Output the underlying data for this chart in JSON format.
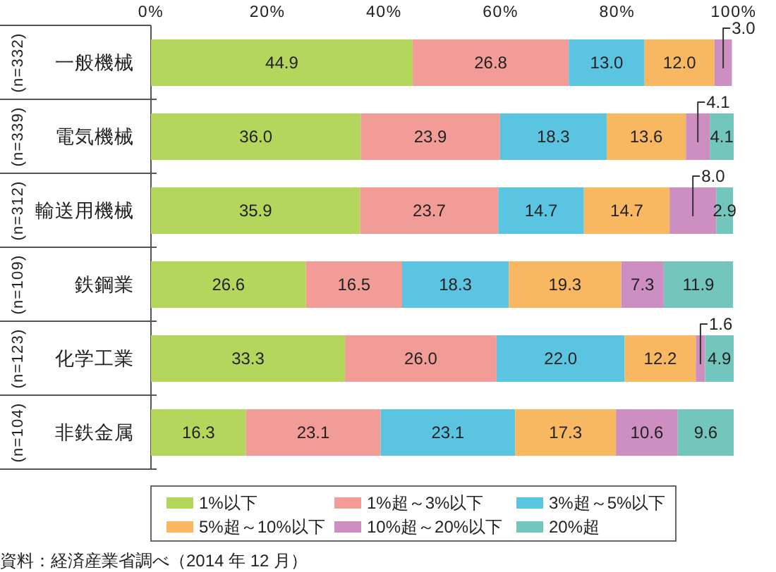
{
  "chart_data": {
    "type": "bar",
    "orientation": "horizontal",
    "stacked": true,
    "categories": [
      "一般機械",
      "電気機械",
      "輸送用機械",
      "鉄鋼業",
      "化学工業",
      "非鉄金属"
    ],
    "y2_categories": [
      "(n=332)",
      "(n=339)",
      "(n=312)",
      "(n=109)",
      "(n=123)",
      "(n=104)"
    ],
    "xlim": [
      0,
      100
    ],
    "xticks": [
      {
        "value": 0,
        "label": "0%"
      },
      {
        "value": 20,
        "label": "20%"
      },
      {
        "value": 40,
        "label": "40%"
      },
      {
        "value": 60,
        "label": "60%"
      },
      {
        "value": 80,
        "label": "80%"
      },
      {
        "value": 100,
        "label": "100%"
      }
    ],
    "series": [
      {
        "name": "1%以下",
        "color": "#b5d65d",
        "values": [
          44.9,
          36.0,
          35.9,
          26.6,
          33.3,
          16.3
        ],
        "value_labels": [
          "44.9",
          "36.0",
          "35.9",
          "26.6",
          "33.3",
          "16.3"
        ]
      },
      {
        "name": "1%超～3%以下",
        "color": "#f29c97",
        "values": [
          26.8,
          23.9,
          23.7,
          16.5,
          26.0,
          23.1
        ],
        "value_labels": [
          "26.8",
          "23.9",
          "23.7",
          "16.5",
          "26.0",
          "23.1"
        ]
      },
      {
        "name": "3%超～5%以下",
        "color": "#5bc4e1",
        "values": [
          13.0,
          18.3,
          14.7,
          18.3,
          22.0,
          23.1
        ],
        "value_labels": [
          "13.0",
          "18.3",
          "14.7",
          "18.3",
          "22.0",
          "23.1"
        ]
      },
      {
        "name": "5%超～10%以下",
        "color": "#f8b862",
        "values": [
          12.0,
          13.6,
          14.7,
          19.3,
          12.2,
          17.3
        ],
        "value_labels": [
          "12.0",
          "13.6",
          "14.7",
          "19.3",
          "12.2",
          "17.3"
        ]
      },
      {
        "name": "10%超～20%以下",
        "color": "#cd8fc1",
        "values": [
          3.0,
          4.1,
          8.0,
          7.3,
          1.6,
          10.6
        ],
        "value_labels": [
          "3.0",
          "4.1",
          "8.0",
          "7.3",
          "1.6",
          "10.6"
        ]
      },
      {
        "name": "20%超",
        "color": "#73c6bc",
        "values": [
          null,
          4.1,
          2.9,
          11.9,
          4.9,
          9.6
        ],
        "value_labels": [
          null,
          "4.1",
          "2.9",
          "11.9",
          "4.9",
          "9.6"
        ]
      }
    ],
    "legend": "bottom",
    "annotations": [
      "資料：経済産業省調べ（2014 年 12 月）"
    ]
  }
}
